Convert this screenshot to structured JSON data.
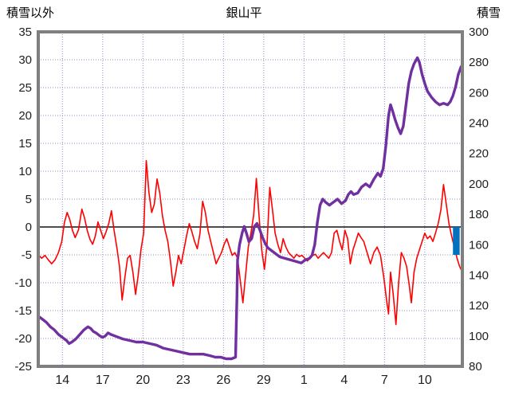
{
  "chart_data": {
    "type": "line",
    "title": "銀山平",
    "left_axis": {
      "label": "積雪以外",
      "min": -25,
      "max": 35,
      "step": 5
    },
    "right_axis": {
      "label": "積雪",
      "min": 80,
      "max": 300,
      "step": 20
    },
    "x_axis": {
      "min": 12.2,
      "max": 43.8,
      "tick_positions": [
        14,
        17,
        20,
        23,
        26,
        29,
        32,
        35,
        38,
        41
      ],
      "tick_labels": [
        "14",
        "17",
        "20",
        "23",
        "26",
        "29",
        "1",
        "4",
        "7",
        "10"
      ]
    },
    "grid": {
      "style": "dotted",
      "color": "#8f8fc7"
    },
    "border_color": "#7f7f7f",
    "zero_line_color": "#4d4d4d",
    "text_color": "#1f1f1f",
    "series": [
      {
        "name": "red-line",
        "type": "line",
        "axis": "left",
        "color": "#ff0000",
        "width": 1.6,
        "points": [
          [
            12.2,
            -5.0
          ],
          [
            12.45,
            -5.6
          ],
          [
            12.7,
            -5.1
          ],
          [
            12.95,
            -5.9
          ],
          [
            13.2,
            -6.6
          ],
          [
            13.45,
            -5.9
          ],
          [
            13.7,
            -4.6
          ],
          [
            13.95,
            -2.6
          ],
          [
            14.15,
            0.8
          ],
          [
            14.35,
            2.6
          ],
          [
            14.55,
            1.3
          ],
          [
            14.75,
            -0.6
          ],
          [
            14.95,
            -1.9
          ],
          [
            15.2,
            -0.5
          ],
          [
            15.45,
            3.2
          ],
          [
            15.65,
            1.6
          ],
          [
            15.85,
            -0.6
          ],
          [
            16.05,
            -2.2
          ],
          [
            16.25,
            -3.1
          ],
          [
            16.45,
            -1.6
          ],
          [
            16.65,
            0.9
          ],
          [
            16.85,
            -0.6
          ],
          [
            17.05,
            -2.1
          ],
          [
            17.25,
            -0.9
          ],
          [
            17.45,
            0.6
          ],
          [
            17.65,
            2.9
          ],
          [
            17.85,
            -0.6
          ],
          [
            18.05,
            -3.6
          ],
          [
            18.25,
            -7.1
          ],
          [
            18.45,
            -13.1
          ],
          [
            18.65,
            -9.1
          ],
          [
            18.85,
            -5.6
          ],
          [
            19.05,
            -5.1
          ],
          [
            19.25,
            -8.1
          ],
          [
            19.45,
            -12.1
          ],
          [
            19.65,
            -8.6
          ],
          [
            19.85,
            -4.1
          ],
          [
            20.05,
            -1.1
          ],
          [
            20.25,
            11.9
          ],
          [
            20.45,
            6.1
          ],
          [
            20.65,
            2.6
          ],
          [
            20.85,
            4.1
          ],
          [
            21.05,
            8.6
          ],
          [
            21.25,
            6.1
          ],
          [
            21.45,
            2.1
          ],
          [
            21.65,
            -0.6
          ],
          [
            21.85,
            -2.6
          ],
          [
            22.05,
            -6.1
          ],
          [
            22.25,
            -10.6
          ],
          [
            22.45,
            -8.1
          ],
          [
            22.65,
            -5.1
          ],
          [
            22.85,
            -6.6
          ],
          [
            23.05,
            -4.1
          ],
          [
            23.25,
            -1.6
          ],
          [
            23.45,
            0.6
          ],
          [
            23.65,
            -0.9
          ],
          [
            23.85,
            -2.6
          ],
          [
            24.05,
            -3.9
          ],
          [
            24.25,
            -1.1
          ],
          [
            24.45,
            4.6
          ],
          [
            24.65,
            2.6
          ],
          [
            24.85,
            -0.6
          ],
          [
            25.05,
            -2.6
          ],
          [
            25.25,
            -4.6
          ],
          [
            25.45,
            -6.6
          ],
          [
            25.65,
            -5.6
          ],
          [
            25.85,
            -4.6
          ],
          [
            26.05,
            -3.1
          ],
          [
            26.25,
            -2.1
          ],
          [
            26.45,
            -3.6
          ],
          [
            26.65,
            -5.1
          ],
          [
            26.85,
            -4.6
          ],
          [
            27.05,
            -5.6
          ],
          [
            27.25,
            -9.6
          ],
          [
            27.45,
            -13.6
          ],
          [
            27.65,
            -8.6
          ],
          [
            27.85,
            -3.6
          ],
          [
            28.05,
            -1.1
          ],
          [
            28.25,
            2.1
          ],
          [
            28.45,
            8.7
          ],
          [
            28.65,
            2.1
          ],
          [
            28.85,
            -4.1
          ],
          [
            29.05,
            -7.6
          ],
          [
            29.25,
            -3.1
          ],
          [
            29.45,
            7.1
          ],
          [
            29.65,
            3.1
          ],
          [
            29.85,
            -1.1
          ],
          [
            30.05,
            -3.1
          ],
          [
            30.25,
            -4.6
          ],
          [
            30.45,
            -2.1
          ],
          [
            30.65,
            -3.6
          ],
          [
            30.85,
            -4.6
          ],
          [
            31.05,
            -5.1
          ],
          [
            31.25,
            -5.6
          ],
          [
            31.45,
            -4.9
          ],
          [
            31.65,
            -5.3
          ],
          [
            31.85,
            -5.1
          ],
          [
            32.05,
            -5.6
          ],
          [
            32.25,
            -6.1
          ],
          [
            32.45,
            -5.6
          ],
          [
            32.65,
            -5.1
          ],
          [
            32.85,
            -4.9
          ],
          [
            33.05,
            -5.6
          ],
          [
            33.25,
            -5.1
          ],
          [
            33.45,
            -4.6
          ],
          [
            33.65,
            -5.1
          ],
          [
            33.85,
            -5.6
          ],
          [
            34.05,
            -4.6
          ],
          [
            34.25,
            -1.1
          ],
          [
            34.45,
            -0.6
          ],
          [
            34.65,
            -2.6
          ],
          [
            34.85,
            -4.1
          ],
          [
            35.05,
            -0.6
          ],
          [
            35.25,
            -2.1
          ],
          [
            35.45,
            -6.6
          ],
          [
            35.65,
            -4.1
          ],
          [
            35.85,
            -2.6
          ],
          [
            36.05,
            -1.1
          ],
          [
            36.25,
            -1.9
          ],
          [
            36.45,
            -2.6
          ],
          [
            36.7,
            -4.6
          ],
          [
            36.95,
            -6.6
          ],
          [
            37.2,
            -4.6
          ],
          [
            37.45,
            -3.6
          ],
          [
            37.7,
            -5.1
          ],
          [
            37.95,
            -9.1
          ],
          [
            38.15,
            -13.1
          ],
          [
            38.3,
            -15.6
          ],
          [
            38.45,
            -8.1
          ],
          [
            38.65,
            -12.1
          ],
          [
            38.85,
            -17.5
          ],
          [
            39.05,
            -10.1
          ],
          [
            39.25,
            -4.6
          ],
          [
            39.45,
            -5.6
          ],
          [
            39.65,
            -7.1
          ],
          [
            39.85,
            -10.6
          ],
          [
            40.0,
            -13.6
          ],
          [
            40.2,
            -8.1
          ],
          [
            40.4,
            -5.6
          ],
          [
            40.6,
            -4.1
          ],
          [
            40.8,
            -2.6
          ],
          [
            41.0,
            -1.1
          ],
          [
            41.2,
            -2.1
          ],
          [
            41.4,
            -1.6
          ],
          [
            41.6,
            -2.6
          ],
          [
            41.8,
            -1.1
          ],
          [
            42.0,
            0.6
          ],
          [
            42.2,
            3.1
          ],
          [
            42.4,
            7.6
          ],
          [
            42.6,
            4.1
          ],
          [
            42.8,
            0.6
          ],
          [
            43.0,
            -1.6
          ],
          [
            43.2,
            -3.6
          ],
          [
            43.4,
            -5.6
          ],
          [
            43.6,
            -7.1
          ],
          [
            43.7,
            -7.6
          ]
        ]
      },
      {
        "name": "purple-line",
        "type": "line",
        "axis": "right",
        "color": "#7030a0",
        "width": 3.4,
        "points": [
          [
            12.2,
            113
          ],
          [
            12.5,
            111
          ],
          [
            12.8,
            109
          ],
          [
            13.1,
            106
          ],
          [
            13.4,
            104
          ],
          [
            13.7,
            101
          ],
          [
            14.0,
            99
          ],
          [
            14.3,
            97
          ],
          [
            14.5,
            95
          ],
          [
            14.7,
            96
          ],
          [
            15.0,
            98
          ],
          [
            15.3,
            101
          ],
          [
            15.6,
            104
          ],
          [
            15.9,
            106
          ],
          [
            16.1,
            105
          ],
          [
            16.3,
            103
          ],
          [
            16.5,
            102
          ],
          [
            16.8,
            100
          ],
          [
            17.0,
            99
          ],
          [
            17.2,
            100
          ],
          [
            17.4,
            102
          ],
          [
            17.6,
            101
          ],
          [
            17.9,
            100
          ],
          [
            18.2,
            99
          ],
          [
            18.5,
            98
          ],
          [
            19.0,
            97
          ],
          [
            19.5,
            96
          ],
          [
            20.0,
            96
          ],
          [
            20.5,
            95
          ],
          [
            21.0,
            94
          ],
          [
            21.5,
            92
          ],
          [
            22.0,
            91
          ],
          [
            22.5,
            90
          ],
          [
            23.0,
            89
          ],
          [
            23.5,
            88
          ],
          [
            24.0,
            88
          ],
          [
            24.5,
            88
          ],
          [
            25.0,
            87
          ],
          [
            25.4,
            86
          ],
          [
            25.8,
            86
          ],
          [
            26.2,
            85
          ],
          [
            26.6,
            85
          ],
          [
            26.9,
            86
          ],
          [
            27.0,
            125
          ],
          [
            27.05,
            150
          ],
          [
            27.2,
            160
          ],
          [
            27.4,
            168
          ],
          [
            27.55,
            172
          ],
          [
            27.7,
            168
          ],
          [
            27.9,
            162
          ],
          [
            28.1,
            164
          ],
          [
            28.3,
            172
          ],
          [
            28.5,
            174
          ],
          [
            28.7,
            170
          ],
          [
            28.9,
            165
          ],
          [
            29.1,
            161
          ],
          [
            29.3,
            158
          ],
          [
            29.6,
            156
          ],
          [
            29.9,
            154
          ],
          [
            30.2,
            152
          ],
          [
            30.6,
            151
          ],
          [
            31.0,
            150
          ],
          [
            31.4,
            149
          ],
          [
            31.8,
            148
          ],
          [
            32.1,
            150
          ],
          [
            32.4,
            151
          ],
          [
            32.6,
            153
          ],
          [
            32.8,
            160
          ],
          [
            33.0,
            175
          ],
          [
            33.2,
            186
          ],
          [
            33.4,
            190
          ],
          [
            33.6,
            188
          ],
          [
            33.9,
            186
          ],
          [
            34.2,
            188
          ],
          [
            34.5,
            190
          ],
          [
            34.8,
            187
          ],
          [
            35.1,
            189
          ],
          [
            35.3,
            193
          ],
          [
            35.5,
            195
          ],
          [
            35.7,
            193
          ],
          [
            36.0,
            194
          ],
          [
            36.3,
            198
          ],
          [
            36.6,
            200
          ],
          [
            36.9,
            198
          ],
          [
            37.2,
            203
          ],
          [
            37.5,
            207
          ],
          [
            37.7,
            205
          ],
          [
            37.9,
            210
          ],
          [
            38.1,
            225
          ],
          [
            38.3,
            245
          ],
          [
            38.45,
            252
          ],
          [
            38.6,
            248
          ],
          [
            38.8,
            242
          ],
          [
            39.0,
            237
          ],
          [
            39.2,
            233
          ],
          [
            39.4,
            238
          ],
          [
            39.6,
            252
          ],
          [
            39.8,
            266
          ],
          [
            40.0,
            274
          ],
          [
            40.2,
            279
          ],
          [
            40.45,
            283
          ],
          [
            40.6,
            280
          ],
          [
            40.8,
            272
          ],
          [
            41.0,
            266
          ],
          [
            41.2,
            261
          ],
          [
            41.5,
            257
          ],
          [
            41.8,
            254
          ],
          [
            42.1,
            252
          ],
          [
            42.4,
            253
          ],
          [
            42.7,
            252
          ],
          [
            42.9,
            254
          ],
          [
            43.1,
            258
          ],
          [
            43.3,
            264
          ],
          [
            43.5,
            272
          ],
          [
            43.7,
            277
          ]
        ]
      },
      {
        "name": "blue-bar",
        "type": "bar",
        "axis": "left",
        "color": "#0070c0",
        "x": 43.1,
        "x2": 43.6,
        "y_top": 0,
        "y_bottom": -5
      }
    ]
  }
}
